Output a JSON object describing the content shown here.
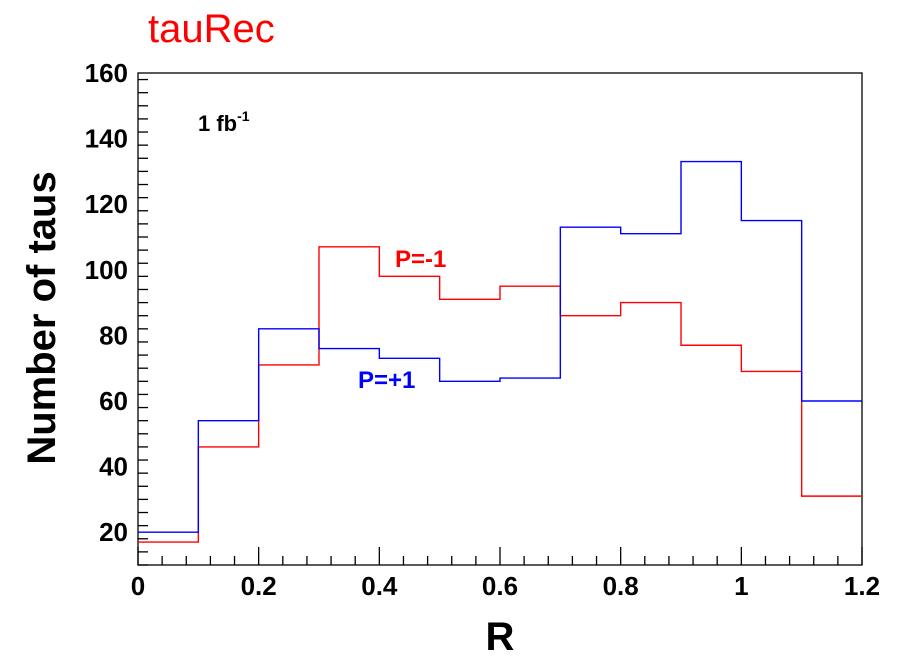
{
  "chart_data": {
    "type": "histogram",
    "title": "tauRec",
    "title_color": "#ff0000",
    "annotation": {
      "base": "1 fb",
      "superscript": "-1"
    },
    "xlabel": "R",
    "ylabel": "Number of taus",
    "xlim": [
      0,
      1.2
    ],
    "ylim": [
      10,
      160
    ],
    "x_ticks": [
      0,
      0.2,
      0.4,
      0.6,
      0.8,
      1,
      1.2
    ],
    "x_tick_labels": [
      "0",
      "0.2",
      "0.4",
      "0.6",
      "0.8",
      "1",
      "1.2"
    ],
    "y_ticks": [
      20,
      40,
      60,
      80,
      100,
      120,
      140,
      160
    ],
    "y_tick_labels": [
      "20",
      "40",
      "60",
      "80",
      "100",
      "120",
      "140",
      "160"
    ],
    "bin_edges": [
      0,
      0.1,
      0.2,
      0.3,
      0.4,
      0.5,
      0.6,
      0.7,
      0.8,
      0.9,
      1.0,
      1.1,
      1.2
    ],
    "grid": false,
    "series": [
      {
        "name": "P=-1",
        "color": "#ff0000",
        "values": [
          17,
          46,
          71,
          107,
          98,
          91,
          95,
          86,
          90,
          77,
          69,
          31
        ]
      },
      {
        "name": "P=+1",
        "color": "#0000ff",
        "values": [
          20,
          54,
          82,
          76,
          73,
          66,
          67,
          113,
          111,
          133,
          115,
          60
        ]
      }
    ]
  }
}
